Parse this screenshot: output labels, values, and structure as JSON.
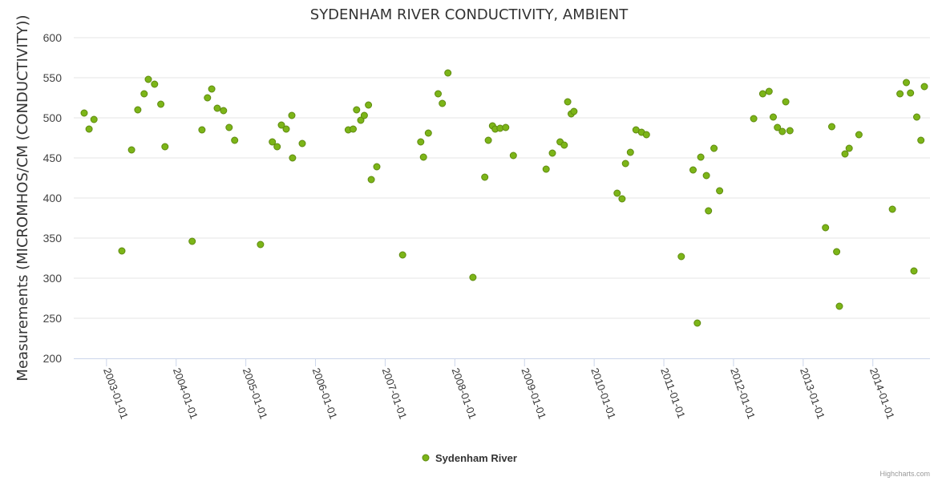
{
  "chart_data": {
    "type": "scatter",
    "title": "SYDENHAM RIVER CONDUCTIVITY, AMBIENT",
    "ylabel": "Measurements (MICROMHOS/CM (CONDUCTIVITY))",
    "xlabel": "",
    "ylim": [
      200,
      600
    ],
    "yticks": [
      200,
      250,
      300,
      350,
      400,
      450,
      500,
      550,
      600
    ],
    "xlim": [
      2002.53,
      2014.82
    ],
    "xticks": [
      {
        "value": 2003.0,
        "label": "2003-01-01"
      },
      {
        "value": 2004.0,
        "label": "2004-01-01"
      },
      {
        "value": 2005.0,
        "label": "2005-01-01"
      },
      {
        "value": 2006.0,
        "label": "2006-01-01"
      },
      {
        "value": 2007.0,
        "label": "2007-01-01"
      },
      {
        "value": 2008.0,
        "label": "2008-01-01"
      },
      {
        "value": 2009.0,
        "label": "2009-01-01"
      },
      {
        "value": 2010.0,
        "label": "2010-01-01"
      },
      {
        "value": 2011.0,
        "label": "2011-01-01"
      },
      {
        "value": 2012.0,
        "label": "2012-01-01"
      },
      {
        "value": 2013.0,
        "label": "2013-01-01"
      },
      {
        "value": 2014.0,
        "label": "2014-01-01"
      }
    ],
    "grid": true,
    "legend_position": "bottom-center",
    "series": [
      {
        "name": "Sydenham River",
        "color": "#7cb518",
        "border_color": "#5f8a10",
        "points": [
          [
            2002.68,
            506
          ],
          [
            2002.75,
            486
          ],
          [
            2002.82,
            498
          ],
          [
            2003.22,
            334
          ],
          [
            2003.36,
            460
          ],
          [
            2003.45,
            510
          ],
          [
            2003.54,
            530
          ],
          [
            2003.6,
            548
          ],
          [
            2003.69,
            542
          ],
          [
            2003.78,
            517
          ],
          [
            2003.84,
            464
          ],
          [
            2004.23,
            346
          ],
          [
            2004.37,
            485
          ],
          [
            2004.45,
            525
          ],
          [
            2004.51,
            536
          ],
          [
            2004.59,
            512
          ],
          [
            2004.68,
            509
          ],
          [
            2004.76,
            488
          ],
          [
            2004.84,
            472
          ],
          [
            2005.21,
            342
          ],
          [
            2005.38,
            470
          ],
          [
            2005.45,
            464
          ],
          [
            2005.51,
            491
          ],
          [
            2005.58,
            486
          ],
          [
            2005.66,
            503
          ],
          [
            2005.67,
            450
          ],
          [
            2005.81,
            468
          ],
          [
            2006.47,
            485
          ],
          [
            2006.54,
            486
          ],
          [
            2006.59,
            510
          ],
          [
            2006.65,
            497
          ],
          [
            2006.7,
            503
          ],
          [
            2006.76,
            516
          ],
          [
            2006.8,
            423
          ],
          [
            2006.88,
            439
          ],
          [
            2007.25,
            329
          ],
          [
            2007.51,
            470
          ],
          [
            2007.55,
            451
          ],
          [
            2007.62,
            481
          ],
          [
            2007.76,
            530
          ],
          [
            2007.82,
            518
          ],
          [
            2007.9,
            556
          ],
          [
            2008.26,
            301
          ],
          [
            2008.43,
            426
          ],
          [
            2008.48,
            472
          ],
          [
            2008.54,
            490
          ],
          [
            2008.58,
            486
          ],
          [
            2008.65,
            487
          ],
          [
            2008.73,
            488
          ],
          [
            2008.84,
            453
          ],
          [
            2009.31,
            436
          ],
          [
            2009.4,
            456
          ],
          [
            2009.51,
            470
          ],
          [
            2009.57,
            466
          ],
          [
            2009.62,
            520
          ],
          [
            2009.67,
            505
          ],
          [
            2009.71,
            508
          ],
          [
            2010.33,
            406
          ],
          [
            2010.4,
            399
          ],
          [
            2010.45,
            443
          ],
          [
            2010.52,
            457
          ],
          [
            2010.6,
            485
          ],
          [
            2010.68,
            482
          ],
          [
            2010.75,
            479
          ],
          [
            2011.25,
            327
          ],
          [
            2011.42,
            435
          ],
          [
            2011.48,
            244
          ],
          [
            2011.53,
            451
          ],
          [
            2011.61,
            428
          ],
          [
            2011.64,
            384
          ],
          [
            2011.72,
            462
          ],
          [
            2011.8,
            409
          ],
          [
            2012.29,
            499
          ],
          [
            2012.42,
            530
          ],
          [
            2012.51,
            533
          ],
          [
            2012.57,
            501
          ],
          [
            2012.63,
            488
          ],
          [
            2012.7,
            483
          ],
          [
            2012.75,
            520
          ],
          [
            2012.81,
            484
          ],
          [
            2013.32,
            363
          ],
          [
            2013.41,
            489
          ],
          [
            2013.48,
            333
          ],
          [
            2013.52,
            265
          ],
          [
            2013.6,
            455
          ],
          [
            2013.66,
            462
          ],
          [
            2013.8,
            479
          ],
          [
            2014.28,
            386
          ],
          [
            2014.39,
            530
          ],
          [
            2014.48,
            544
          ],
          [
            2014.54,
            531
          ],
          [
            2014.59,
            309
          ],
          [
            2014.63,
            501
          ],
          [
            2014.69,
            472
          ],
          [
            2014.74,
            539
          ]
        ]
      }
    ]
  },
  "credits": "Highcharts.com"
}
